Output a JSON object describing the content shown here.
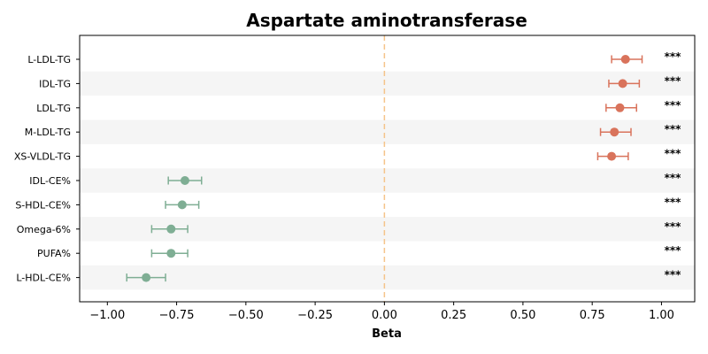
{
  "chart_data": {
    "type": "scatter",
    "subtype": "forest-plot",
    "title": "Aspartate aminotransferase",
    "xlabel": "Beta",
    "ylabel": "",
    "xlim": [
      -1.1,
      1.12
    ],
    "xticks": [
      -1.0,
      -0.75,
      -0.5,
      -0.25,
      0.0,
      0.25,
      0.5,
      0.75,
      1.0
    ],
    "xtick_labels": [
      "−1.00",
      "−0.75",
      "−0.50",
      "−0.25",
      "0.00",
      "0.25",
      "0.50",
      "0.75",
      "1.00"
    ],
    "reference_line": {
      "x": 0.0,
      "style": "dashed",
      "color": "#f5c48a"
    },
    "colors": {
      "positive": "#d9735b",
      "negative": "#7fae94",
      "band": "#f5f5f5"
    },
    "grid": false,
    "legend": "none",
    "rows": [
      {
        "label": "L-LDL-TG",
        "beta": 0.87,
        "ci_low": 0.82,
        "ci_high": 0.93,
        "sig": "***"
      },
      {
        "label": "IDL-TG",
        "beta": 0.86,
        "ci_low": 0.81,
        "ci_high": 0.92,
        "sig": "***"
      },
      {
        "label": "LDL-TG",
        "beta": 0.85,
        "ci_low": 0.8,
        "ci_high": 0.91,
        "sig": "***"
      },
      {
        "label": "M-LDL-TG",
        "beta": 0.83,
        "ci_low": 0.78,
        "ci_high": 0.89,
        "sig": "***"
      },
      {
        "label": "XS-VLDL-TG",
        "beta": 0.82,
        "ci_low": 0.77,
        "ci_high": 0.88,
        "sig": "***"
      },
      {
        "label": "IDL-CE%",
        "beta": -0.72,
        "ci_low": -0.78,
        "ci_high": -0.66,
        "sig": "***"
      },
      {
        "label": "S-HDL-CE%",
        "beta": -0.73,
        "ci_low": -0.79,
        "ci_high": -0.67,
        "sig": "***"
      },
      {
        "label": "Omega-6%",
        "beta": -0.77,
        "ci_low": -0.84,
        "ci_high": -0.71,
        "sig": "***"
      },
      {
        "label": "PUFA%",
        "beta": -0.77,
        "ci_low": -0.84,
        "ci_high": -0.71,
        "sig": "***"
      },
      {
        "label": "L-HDL-CE%",
        "beta": -0.86,
        "ci_low": -0.93,
        "ci_high": -0.79,
        "sig": "***"
      }
    ]
  }
}
